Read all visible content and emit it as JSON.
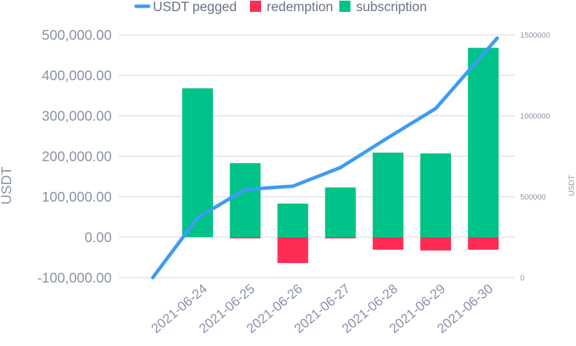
{
  "chart_data": {
    "type": "bar",
    "categories": [
      "2021-06-24",
      "2021-06-25",
      "2021-06-26",
      "2021-06-27",
      "2021-06-28",
      "2021-06-29",
      "2021-06-30"
    ],
    "series": [
      {
        "name": "subscription",
        "type": "bar",
        "axis": "left",
        "color": "#00c389",
        "values": [
          368000,
          183000,
          83000,
          123000,
          209000,
          207000,
          468000
        ]
      },
      {
        "name": "redemption",
        "type": "bar",
        "axis": "left",
        "color": "#ff2d55",
        "values": [
          0,
          -3000,
          -64000,
          -3000,
          -31000,
          -33000,
          -31000
        ]
      },
      {
        "name": "USDT pegged",
        "type": "line",
        "axis": "right",
        "color": "#3d9cf2",
        "x": [
          "2021-06-23",
          "2021-06-24",
          "2021-06-25",
          "2021-06-26",
          "2021-06-27",
          "2021-06-28",
          "2021-06-29",
          "2021-06-30"
        ],
        "values": [
          0,
          370000,
          545000,
          565000,
          680000,
          865000,
          1045000,
          1480000
        ]
      }
    ],
    "left_axis": {
      "label": "USDT",
      "ylim": [
        -100000,
        500000
      ],
      "ticks": [
        500000,
        400000,
        300000,
        200000,
        100000,
        0,
        -100000
      ],
      "tick_labels": [
        "500,000.00",
        "400,000.00",
        "300,000.00",
        "200,000.00",
        "100,000.00",
        "0.00",
        "-100,000.00"
      ]
    },
    "right_axis": {
      "label": "USDT",
      "ylim": [
        0,
        1500000
      ],
      "ticks": [
        1500000,
        1000000,
        500000,
        0
      ],
      "tick_labels": [
        "1500000",
        "1000000",
        "500000",
        "0"
      ]
    },
    "legend": {
      "position": "top",
      "items": [
        {
          "label": "USDT pegged",
          "color": "#3d9cf2",
          "marker": "line"
        },
        {
          "label": "redemption",
          "color": "#ff2d55",
          "marker": "square"
        },
        {
          "label": "subscription",
          "color": "#00c389",
          "marker": "square"
        }
      ]
    },
    "grid": true,
    "stacked": true
  }
}
